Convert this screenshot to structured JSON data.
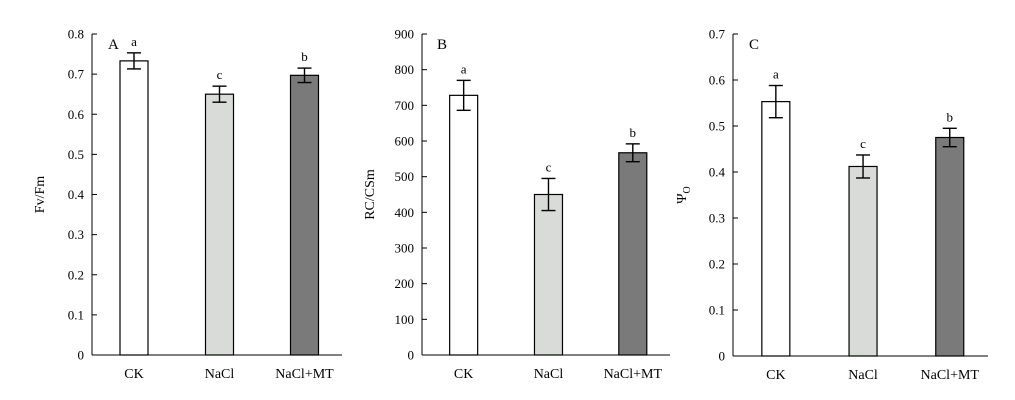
{
  "colors": {
    "CK": "#ffffff",
    "NaCl": "#d9dbd9",
    "NaCl+MT": "#7a7a7a",
    "axis": "#000000"
  },
  "chart_data": [
    {
      "type": "bar",
      "panel": "A",
      "ylabel": "Fv/Fm",
      "ylim": [
        0,
        0.8
      ],
      "yticks": [
        "0",
        "0.1",
        "0.2",
        "0.3",
        "0.4",
        "0.5",
        "0.6",
        "0.7",
        "0.8"
      ],
      "categories": [
        "CK",
        "NaCl",
        "NaCl+MT"
      ],
      "values": [
        0.733,
        0.65,
        0.697
      ],
      "errors": [
        0.02,
        0.02,
        0.018
      ],
      "significance": [
        "a",
        "c",
        "b"
      ]
    },
    {
      "type": "bar",
      "panel": "B",
      "ylabel": "RC/CSm",
      "ylim": [
        0,
        900
      ],
      "yticks": [
        "0",
        "100",
        "200",
        "300",
        "400",
        "500",
        "600",
        "700",
        "800",
        "900"
      ],
      "categories": [
        "CK",
        "NaCl",
        "NaCl+MT"
      ],
      "values": [
        728,
        450,
        567
      ],
      "errors": [
        42,
        45,
        25
      ],
      "significance": [
        "a",
        "c",
        "b"
      ]
    },
    {
      "type": "bar",
      "panel": "C",
      "ylabel": "Ψ",
      "ylabel_sub": "O",
      "ylim": [
        0,
        0.7
      ],
      "yticks": [
        "0",
        "0.1",
        "0.2",
        "0.3",
        "0.4",
        "0.5",
        "0.6",
        "0.7"
      ],
      "categories": [
        "CK",
        "NaCl",
        "NaCl+MT"
      ],
      "values": [
        0.553,
        0.412,
        0.475
      ],
      "errors": [
        0.035,
        0.025,
        0.02
      ],
      "significance": [
        "a",
        "c",
        "b"
      ]
    }
  ]
}
